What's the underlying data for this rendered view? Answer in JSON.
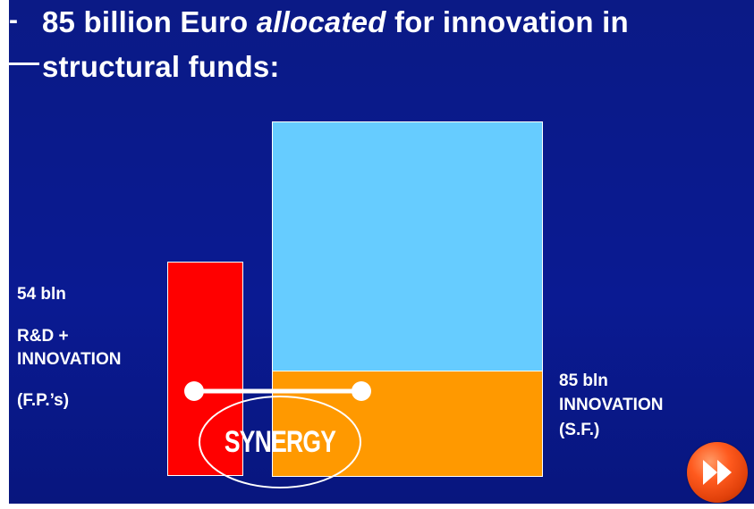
{
  "slide": {
    "title": {
      "bullet": "-",
      "line1_part1": "85 billion Euro ",
      "line1_emphasis": "allocated",
      "line1_part2": " for innovation in",
      "line2": "structural funds:"
    },
    "left_block": {
      "amount": "54 bln",
      "category_line1": "R&D +",
      "category_line2": "INNOVATION",
      "subtitle": "(F.P.’s)"
    },
    "right_block": {
      "amount": "85 bln",
      "category": "INNOVATION",
      "subtitle": "(S.F.)"
    },
    "synergy_label": "SYNERGY",
    "colors": {
      "background": "#0a1a8a",
      "fp_bar": "#ff0000",
      "upper_box": "#66ccff",
      "sf_box": "#ff9900",
      "next_button": "#ff5a1e"
    },
    "icons": {
      "next": "fast-forward-icon"
    }
  }
}
